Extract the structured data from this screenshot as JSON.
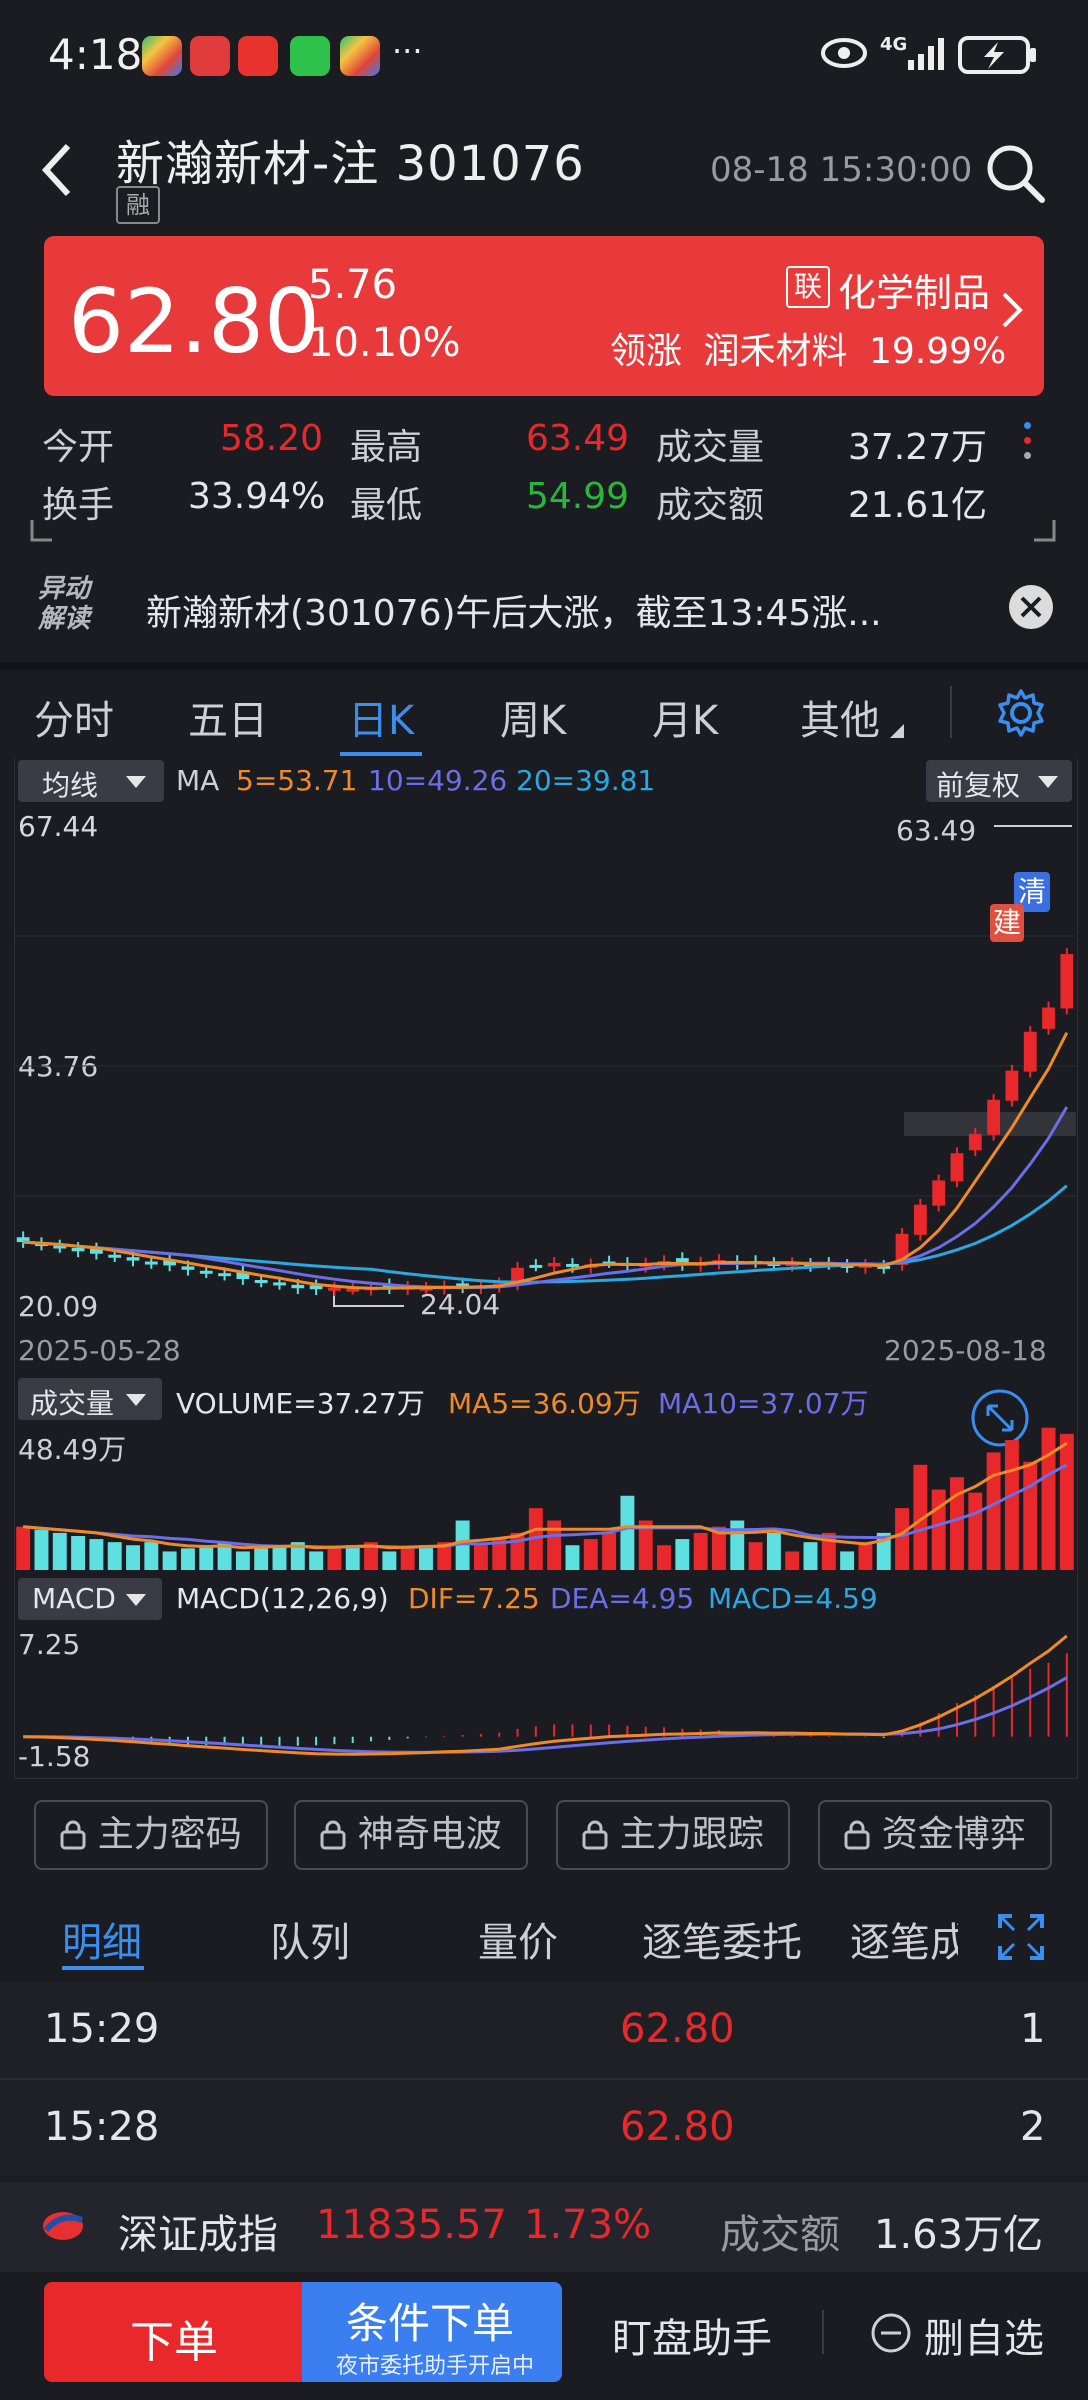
{
  "status": {
    "time": "4:18",
    "more": "···",
    "network": "4G"
  },
  "header": {
    "title": "新瀚新材-注 301076",
    "badge": "融",
    "datetime": "08-18 15:30:00"
  },
  "quote": {
    "price": "62.80",
    "change": "5.76",
    "change_pct": "10.10%",
    "industry_badge": "联",
    "industry": "化学制品",
    "leader_label": "领涨",
    "leader_name": "润禾材料",
    "leader_pct": "19.99%"
  },
  "stats": {
    "open_label": "今开",
    "open": "58.20",
    "high_label": "最高",
    "high": "63.49",
    "volume_label": "成交量",
    "volume": "37.27万",
    "turnover_label": "换手",
    "turnover": "33.94%",
    "low_label": "最低",
    "low": "54.99",
    "amount_label": "成交额",
    "amount": "21.61亿"
  },
  "news": {
    "tag_line1": "异动",
    "tag_line2": "解读",
    "text": "新瀚新材(301076)午后大涨，截至13:45涨..."
  },
  "chart_tabs": [
    "分时",
    "五日",
    "日K",
    "周K",
    "月K",
    "其他"
  ],
  "kline": {
    "ma_selector": "均线",
    "ma_label": "MA",
    "ma5": "5=53.71",
    "ma10": "10=49.26",
    "ma20": "20=39.81",
    "adjust": "前复权",
    "y_top": "67.44",
    "y_mid": "43.76",
    "y_bottom": "20.09",
    "max_label": "63.49",
    "min_label": "24.04",
    "date_start": "2025-05-28",
    "date_end": "2025-08-18",
    "marker_qing": "清",
    "marker_jian": "建",
    "vol_selector": "成交量",
    "vol_text": "VOLUME=37.27万",
    "vol_ma5": "MA5=36.09万",
    "vol_ma10": "MA10=37.07万",
    "vol_max": "48.49万",
    "macd_selector": "MACD",
    "macd_text": "MACD(12,26,9)",
    "dif": "DIF=7.25",
    "dea": "DEA=4.95",
    "macd": "MACD=4.59",
    "macd_top": "7.25",
    "macd_bottom": "-1.58"
  },
  "colors": {
    "up": "#e8282a",
    "down": "#5ee0e0",
    "ma5": "#f08a24",
    "ma10": "#6a6ee8",
    "ma20": "#2aa8e0",
    "accent": "#3a8ef0"
  },
  "tools": [
    "主力密码",
    "神奇电波",
    "主力跟踪",
    "资金博弈"
  ],
  "detail_tabs": [
    "明细",
    "队列",
    "量价",
    "逐笔委托",
    "逐笔成"
  ],
  "ticks": [
    {
      "time": "15:29",
      "price": "62.80",
      "vol": "1"
    },
    {
      "time": "15:28",
      "price": "62.80",
      "vol": "2"
    }
  ],
  "index": {
    "name": "深证成指",
    "value": "11835.57",
    "pct": "1.73%",
    "amount_label": "成交额",
    "amount": "1.63万亿"
  },
  "bottom": {
    "order": "下单",
    "cond_order": "条件下单",
    "cond_sub": "夜市委托助手开启中",
    "assistant": "盯盘助手",
    "remove": "删自选"
  }
}
